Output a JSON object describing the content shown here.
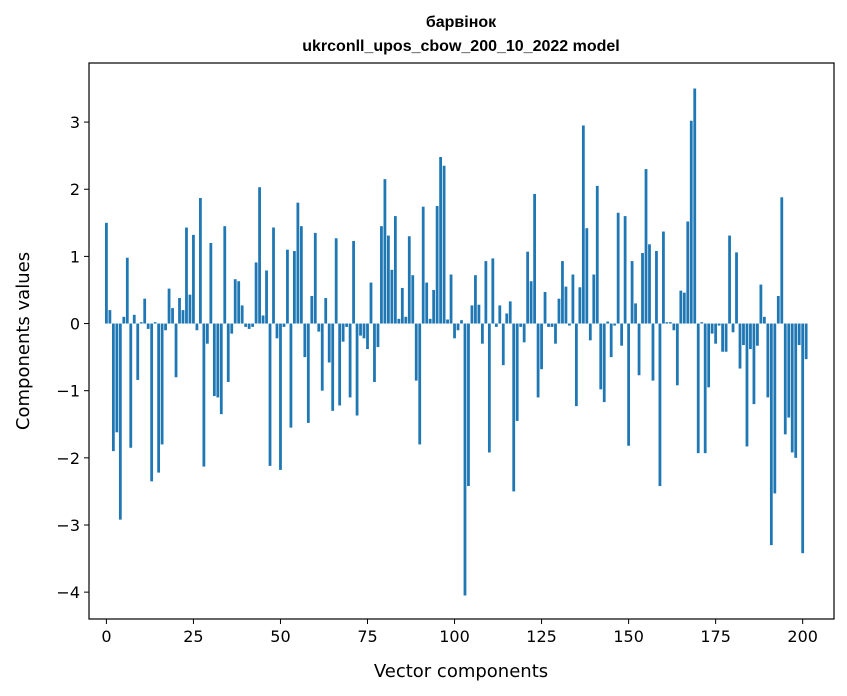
{
  "chart_data": {
    "type": "bar",
    "title_line1": "барвінок",
    "title_line2": "ukrconll_upos_cbow_200_10_2022 model",
    "xlabel": "Vector components",
    "ylabel": "Components values",
    "xlim": [
      -5,
      209
    ],
    "ylim": [
      -4.4,
      3.88
    ],
    "xticks": [
      0,
      25,
      50,
      75,
      100,
      125,
      150,
      175,
      200
    ],
    "yticks": [
      -4,
      -3,
      -2,
      -1,
      0,
      1,
      2,
      3
    ],
    "bar_color": "#1f77b4",
    "values": [
      1.5,
      0.2,
      -1.9,
      -1.62,
      -2.92,
      0.1,
      0.98,
      -1.85,
      0.13,
      -0.84,
      0.02,
      0.37,
      -0.08,
      -2.35,
      0.02,
      -2.22,
      -1.8,
      -0.1,
      0.52,
      0.23,
      -0.8,
      0.38,
      0.2,
      1.43,
      0.43,
      1.32,
      -0.1,
      1.87,
      -2.13,
      -0.3,
      1.2,
      -1.08,
      -1.1,
      -1.35,
      1.45,
      -0.87,
      -0.15,
      0.66,
      0.63,
      0.27,
      -0.05,
      -0.08,
      -0.05,
      0.91,
      2.03,
      0.12,
      0.79,
      -2.12,
      1.43,
      -0.22,
      -2.18,
      -0.05,
      1.1,
      -1.55,
      1.08,
      1.8,
      1.45,
      -0.5,
      -1.48,
      0.41,
      1.35,
      -0.12,
      -1.0,
      0.38,
      -0.58,
      -1.3,
      1.27,
      -1.22,
      -0.27,
      -0.05,
      -1.1,
      1.23,
      -1.37,
      -0.18,
      -0.22,
      -0.38,
      0.61,
      -0.87,
      -0.35,
      1.45,
      2.15,
      1.31,
      0.8,
      1.6,
      0.07,
      0.53,
      0.1,
      1.3,
      0.72,
      -0.85,
      -1.8,
      1.74,
      0.61,
      0.07,
      0.5,
      1.75,
      2.48,
      2.35,
      0.06,
      0.73,
      -0.22,
      -0.1,
      0.05,
      -4.05,
      -2.42,
      0.27,
      0.72,
      0.28,
      -0.3,
      0.93,
      -1.92,
      0.97,
      -0.05,
      0.27,
      -0.62,
      0.15,
      0.33,
      -2.5,
      -1.45,
      -0.05,
      -0.28,
      1.07,
      0.63,
      1.93,
      -1.1,
      -0.68,
      0.47,
      -0.05,
      -0.05,
      -0.3,
      0.37,
      0.93,
      0.55,
      -0.03,
      0.73,
      -1.23,
      0.54,
      2.95,
      1.42,
      -0.25,
      0.73,
      2.05,
      -0.98,
      -1.17,
      0.03,
      -0.5,
      -0.03,
      1.65,
      -0.33,
      1.6,
      -1.82,
      0.93,
      0.3,
      -0.77,
      1.05,
      2.3,
      1.18,
      -0.85,
      1.08,
      -2.42,
      1.37,
      0.02,
      0.02,
      -0.1,
      -0.92,
      0.49,
      0.46,
      1.52,
      3.02,
      3.5,
      -1.93,
      0.02,
      -1.93,
      -0.95,
      -0.15,
      -0.3,
      -0.03,
      -0.42,
      -0.42,
      1.31,
      -0.13,
      1.06,
      -0.67,
      -0.32,
      -1.83,
      -0.38,
      -1.2,
      -0.33,
      0.58,
      0.1,
      -1.1,
      -3.3,
      -2.53,
      0.41,
      1.88,
      -1.65,
      -1.4,
      -1.92,
      -2.0,
      -0.32,
      -3.42,
      -0.53
    ]
  }
}
